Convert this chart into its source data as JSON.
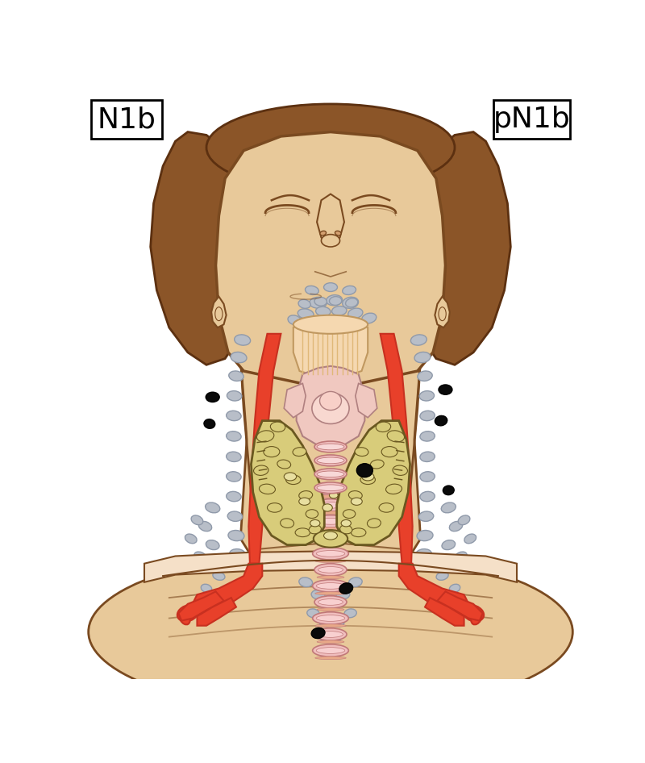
{
  "title_left": "N1b",
  "title_right": "pN1b",
  "bg_color": "#FFFFFF",
  "skin_color": "#E8C99A",
  "skin_light": "#F0D8B0",
  "skin_outline": "#7A4A20",
  "hair_color": "#8B5528",
  "hair_dark": "#5C3010",
  "red_vessel": "#E8402A",
  "red_dark": "#C83020",
  "lymph_gray": "#B8BEC8",
  "lymph_black": "#0A0A0A",
  "thyroid_color": "#D8CC7A",
  "thyroid_light": "#E8DFA0",
  "thyroid_outline": "#6A5820",
  "spine_color": "#F0BEBE",
  "spine_ring": "#D89898",
  "spine_outline": "#C07878",
  "larynx_color": "#F0C8C0",
  "larynx_outline": "#B08080",
  "pharynx_color": "#F5D8B0",
  "pharynx_stripe": "#E0B878",
  "collar_color": "#F5E0C8",
  "muscle_pink": "#F0C8C8"
}
